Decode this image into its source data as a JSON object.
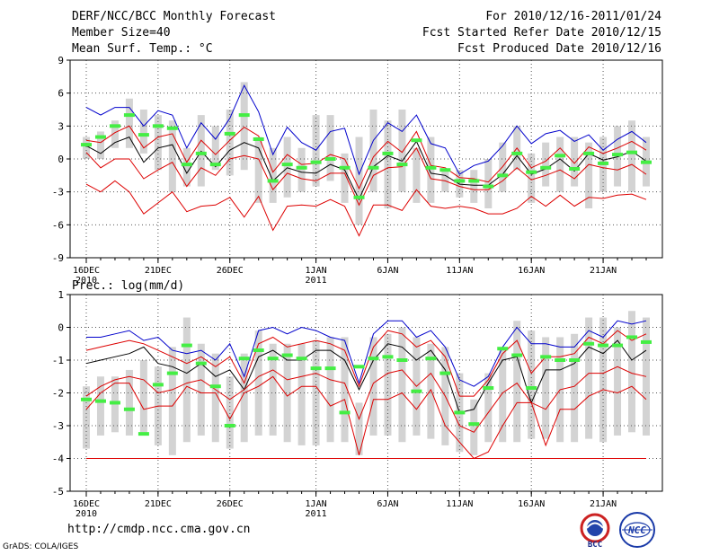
{
  "header": {
    "title": "DERF/NCC/BCC Monthly Forecast",
    "member_size": "Member Size=40",
    "variable": "Mean Surf. Temp.: °C",
    "period": "For 2010/12/16-2011/01/24",
    "started": "Fcst Started Refer Date 2010/12/15",
    "produced": "Fcst Produced Date 2010/12/16"
  },
  "footer": {
    "url": "http://cmdp.ncc.cma.gov.cn",
    "grads": "GrADS: COLA/IGES",
    "logo_bcc": "BCC",
    "logo_ncc": "NCC"
  },
  "colors": {
    "box": "#d3d3d3",
    "mean": "#000000",
    "max": "#0000cc",
    "min": "#dd0000",
    "median": "#44ee44"
  },
  "chart_data": [
    {
      "type": "box",
      "title": "Mean Surf. Temp.: °C",
      "xlabel": "",
      "ylabel": "",
      "ylim": [
        -9,
        9
      ],
      "yticks": [
        -9,
        -6,
        -3,
        0,
        3,
        6,
        9
      ],
      "xlim": [
        0,
        39
      ],
      "grid": true,
      "xtick_labels": [
        {
          "day": 0,
          "label": "16DEC",
          "sub": "2010"
        },
        {
          "day": 5,
          "label": "21DEC",
          "sub": ""
        },
        {
          "day": 10,
          "label": "26DEC",
          "sub": ""
        },
        {
          "day": 16,
          "label": "1JAN",
          "sub": "2011"
        },
        {
          "day": 21,
          "label": "6JAN",
          "sub": ""
        },
        {
          "day": 26,
          "label": "11JAN",
          "sub": ""
        },
        {
          "day": 31,
          "label": "16JAN",
          "sub": ""
        },
        {
          "day": 36,
          "label": "21JAN",
          "sub": ""
        }
      ],
      "days": [
        0,
        1,
        2,
        3,
        4,
        5,
        6,
        7,
        8,
        9,
        10,
        11,
        12,
        13,
        14,
        15,
        16,
        17,
        18,
        19,
        20,
        21,
        22,
        23,
        24,
        25,
        26,
        27,
        28,
        29,
        30,
        31,
        32,
        33,
        34,
        35,
        36,
        37,
        38,
        39
      ],
      "box_top": [
        2,
        2.5,
        3.5,
        5.5,
        4.5,
        4,
        3.5,
        1,
        4,
        3,
        4.5,
        7,
        2,
        1,
        2,
        1,
        4,
        4,
        0.5,
        2,
        4.5,
        3.5,
        4.5,
        1,
        2,
        -1,
        -1,
        -1,
        0,
        1.5,
        3,
        0.5,
        1.5,
        2,
        2,
        1.5,
        2,
        3,
        3.5,
        2
      ],
      "box_bot": [
        0,
        0,
        1,
        1,
        0.5,
        -1,
        -3,
        -2.5,
        -2.5,
        -1,
        -1.5,
        -1,
        -4,
        -4,
        -3.5,
        -3,
        -2.5,
        -2,
        -4,
        -6,
        -3,
        -4.5,
        -3,
        -4,
        -4,
        -3,
        -3.5,
        -4,
        -4.5,
        -3,
        -1,
        -4,
        -2.5,
        -3,
        -2.5,
        -4.5,
        -3,
        -2.5,
        -3,
        -2.5
      ],
      "ens_max": [
        4.7,
        4,
        4.7,
        4.7,
        3,
        4.4,
        4,
        1,
        3.3,
        1.8,
        3.7,
        6.7,
        4.3,
        0.4,
        2.9,
        1.5,
        0.8,
        2.5,
        2.8,
        -1.4,
        1.7,
        3.3,
        2.5,
        4,
        1.4,
        1,
        -1.4,
        -0.6,
        -0.2,
        1.2,
        3,
        1.4,
        2.3,
        2.6,
        1.6,
        2.2,
        0.8,
        1.8,
        2.5,
        1.5
      ],
      "ens_mean": [
        1.2,
        0.5,
        1.5,
        2,
        -0.3,
        1,
        1.3,
        -1.3,
        0.7,
        -0.7,
        0.8,
        1.5,
        1,
        -2,
        -0.8,
        -1.2,
        -1.3,
        -0.5,
        -1,
        -3.7,
        -0.7,
        0.3,
        -0.2,
        1.6,
        -1.3,
        -1.5,
        -2.3,
        -2.4,
        -2.4,
        -1.4,
        0.3,
        -1.4,
        -0.9,
        0,
        -1.1,
        0.5,
        -0.1,
        0.2,
        0.7,
        -0.2
      ],
      "ens_min": [
        -2.3,
        -3,
        -2,
        -3,
        -5,
        -4,
        -3,
        -4.8,
        -4.3,
        -4.2,
        -3.5,
        -5.3,
        -3.4,
        -6.5,
        -4.3,
        -4.2,
        -4.3,
        -3.7,
        -4.3,
        -7,
        -4.2,
        -4.2,
        -4.7,
        -2.8,
        -4.3,
        -4.5,
        -4.3,
        -4.5,
        -5,
        -5,
        -4.5,
        -3.4,
        -4.3,
        -3.3,
        -4.3,
        -3.5,
        -3.6,
        -3.3,
        -3.2,
        -3.7
      ],
      "ens_q_low": [
        0.6,
        -0.8,
        0,
        0,
        -1.8,
        -1,
        -0.3,
        -2.5,
        -0.8,
        -1.5,
        0,
        0.3,
        0,
        -2.8,
        -1.3,
        -1.8,
        -2,
        -1.3,
        -1.3,
        -4.2,
        -1.5,
        -0.8,
        -0.7,
        1,
        -1.8,
        -2,
        -2.5,
        -2.8,
        -2.8,
        -2,
        -0.8,
        -1.9,
        -1.5,
        -1,
        -1.8,
        -0.5,
        -0.8,
        -1,
        -0.5,
        -1.4
      ],
      "ens_q_high": [
        1.7,
        1.5,
        2.4,
        3,
        1,
        2,
        2.3,
        -0.3,
        1.7,
        0.4,
        1.7,
        2.9,
        2.1,
        -1.2,
        0.4,
        -0.5,
        -0.4,
        0.4,
        0,
        -2.7,
        0.2,
        1.6,
        0.6,
        2.5,
        -0.6,
        -0.8,
        -1.7,
        -1.8,
        -2.1,
        -0.7,
        1,
        -0.8,
        -0.2,
        1,
        -0.4,
        1.1,
        0.5,
        1,
        1.6,
        0.8
      ],
      "median": [
        1.3,
        2,
        3,
        4,
        2.2,
        3,
        2.8,
        -0.5,
        0.5,
        -0.5,
        2.3,
        4,
        1.8,
        -2,
        -0.5,
        -0.8,
        -0.3,
        0,
        -0.8,
        -3.5,
        -0.8,
        0.5,
        -0.5,
        1.7,
        -0.8,
        -1,
        -2,
        -2,
        -2.5,
        -1.5,
        0.5,
        -1.2,
        -0.8,
        0.3,
        -0.9,
        0.5,
        -0.4,
        0.4,
        0.6,
        -0.3
      ]
    },
    {
      "type": "box",
      "title": "Prec.: log(mm/d)",
      "xlabel": "",
      "ylabel": "",
      "ylim": [
        -5,
        1
      ],
      "yticks": [
        -5,
        -4,
        -3,
        -2,
        -1,
        0,
        1
      ],
      "xlim": [
        0,
        39
      ],
      "grid": true,
      "xtick_labels": [
        {
          "day": 0,
          "label": "16DEC",
          "sub": "2010"
        },
        {
          "day": 5,
          "label": "21DEC",
          "sub": ""
        },
        {
          "day": 10,
          "label": "26DEC",
          "sub": ""
        },
        {
          "day": 16,
          "label": "1JAN",
          "sub": "2011"
        },
        {
          "day": 21,
          "label": "6JAN",
          "sub": ""
        },
        {
          "day": 26,
          "label": "11JAN",
          "sub": ""
        },
        {
          "day": 31,
          "label": "16JAN",
          "sub": ""
        },
        {
          "day": 36,
          "label": "21JAN",
          "sub": ""
        }
      ],
      "days": [
        0,
        1,
        2,
        3,
        4,
        5,
        6,
        7,
        8,
        9,
        10,
        11,
        12,
        13,
        14,
        15,
        16,
        17,
        18,
        19,
        20,
        21,
        22,
        23,
        24,
        25,
        26,
        27,
        28,
        29,
        30,
        31,
        32,
        33,
        34,
        35,
        36,
        37,
        38,
        39
      ],
      "box_top": [
        -1.8,
        -1.5,
        -1.5,
        -1.3,
        -1,
        -1.2,
        -0.6,
        0.3,
        -0.5,
        -0.8,
        -1.5,
        -0.8,
        -0.1,
        -0.5,
        -0.5,
        -0.5,
        -0.4,
        -0.3,
        -0.3,
        -2.3,
        -0.3,
        -0.2,
        0,
        -0.3,
        -0.5,
        -0.6,
        -1.4,
        -2.2,
        -1.4,
        -0.6,
        0.2,
        -0.1,
        -0.3,
        -0.3,
        -0.2,
        0.3,
        0.3,
        0,
        0.5,
        0.3
      ],
      "box_bot": [
        -3.7,
        -3.3,
        -3.2,
        -3.3,
        -3.2,
        -3.6,
        -3.9,
        -3.5,
        -3.3,
        -3.5,
        -3.7,
        -3.5,
        -3.3,
        -3.3,
        -3.5,
        -3.6,
        -3.6,
        -3.5,
        -3.5,
        -3.9,
        -3.3,
        -3.3,
        -3.5,
        -3.3,
        -3.4,
        -3.6,
        -3.8,
        -3.9,
        -3.5,
        -3.5,
        -3.5,
        -3.4,
        -3.4,
        -3.5,
        -3.5,
        -3.4,
        -3.5,
        -3.3,
        -3.2,
        -3.3
      ],
      "ens_max": [
        -0.3,
        -0.3,
        -0.2,
        -0.1,
        -0.4,
        -0.3,
        -0.7,
        -0.8,
        -0.7,
        -1,
        -0.5,
        -1.5,
        -0.1,
        0,
        -0.2,
        0,
        -0.1,
        -0.3,
        -0.4,
        -1.7,
        -0.2,
        0.2,
        0.2,
        -0.3,
        -0.1,
        -0.6,
        -1.6,
        -1.8,
        -1.5,
        -0.6,
        0,
        -0.5,
        -0.5,
        -0.6,
        -0.6,
        -0.1,
        -0.3,
        0.2,
        0.1,
        0.2
      ],
      "ens_mean": [
        -1.1,
        -1,
        -0.9,
        -0.8,
        -0.6,
        -1.1,
        -1.2,
        -1.4,
        -1.1,
        -1.5,
        -1.3,
        -1.9,
        -0.9,
        -0.7,
        -1,
        -1,
        -0.7,
        -0.7,
        -1,
        -1.9,
        -1,
        -0.5,
        -0.6,
        -1,
        -0.7,
        -1.3,
        -2.6,
        -2.5,
        -1.7,
        -1,
        -0.9,
        -2.3,
        -1.3,
        -1.3,
        -1.1,
        -0.6,
        -0.8,
        -0.4,
        -1,
        -0.7
      ],
      "ens_min": [
        -2.5,
        -2,
        -1.7,
        -1.7,
        -2.5,
        -2.4,
        -2.4,
        -1.8,
        -2,
        -2,
        -2.8,
        -2,
        -1.8,
        -1.5,
        -2.1,
        -1.8,
        -1.8,
        -2.4,
        -2.2,
        -3.9,
        -2.2,
        -2.2,
        -2,
        -2.5,
        -1.9,
        -3,
        -3.5,
        -4,
        -3.8,
        -3,
        -2.3,
        -2.3,
        -3.6,
        -2.5,
        -2.5,
        -2.1,
        -1.9,
        -2,
        -1.8,
        -2.2
      ],
      "ens_q_low": [
        -2.1,
        -1.8,
        -1.6,
        -1.5,
        -1.6,
        -2,
        -1.9,
        -1.7,
        -1.6,
        -1.9,
        -2.2,
        -1.9,
        -1.5,
        -1.3,
        -1.6,
        -1.5,
        -1.4,
        -1.6,
        -1.7,
        -2.8,
        -1.7,
        -1.4,
        -1.3,
        -1.8,
        -1.4,
        -2.1,
        -3,
        -3.2,
        -2.6,
        -2,
        -1.7,
        -2.3,
        -2.5,
        -1.9,
        -1.8,
        -1.4,
        -1.4,
        -1.2,
        -1.4,
        -1.5
      ],
      "ens_q_high": [
        -0.7,
        -0.6,
        -0.5,
        -0.4,
        -0.5,
        -0.7,
        -0.9,
        -1.1,
        -0.9,
        -1.2,
        -0.9,
        -1.7,
        -0.5,
        -0.3,
        -0.6,
        -0.5,
        -0.4,
        -0.5,
        -0.7,
        -1.8,
        -0.6,
        -0.1,
        -0.2,
        -0.6,
        -0.4,
        -0.9,
        -2.1,
        -2.1,
        -1.6,
        -0.8,
        -0.4,
        -1.4,
        -0.9,
        -0.9,
        -0.8,
        -0.3,
        -0.5,
        -0.1,
        -0.4,
        -0.2
      ],
      "median": [
        -2.2,
        -2.25,
        -2.3,
        -2.5,
        -3.25,
        -1.75,
        -1.4,
        -0.55,
        -1.1,
        -1.8,
        -3,
        -0.95,
        -0.7,
        -0.95,
        -0.85,
        -0.95,
        -1.25,
        -1.25,
        -2.6,
        -1.2,
        -0.95,
        -0.9,
        -1,
        -1.95,
        -0.95,
        -1.4,
        -2.6,
        -2.95,
        -1.85,
        -0.65,
        -0.85,
        -1.85,
        -0.9,
        -1,
        -1,
        -0.5,
        -0.55,
        -0.55,
        -0.3,
        -0.45
      ],
      "floor_line": -4
    }
  ]
}
